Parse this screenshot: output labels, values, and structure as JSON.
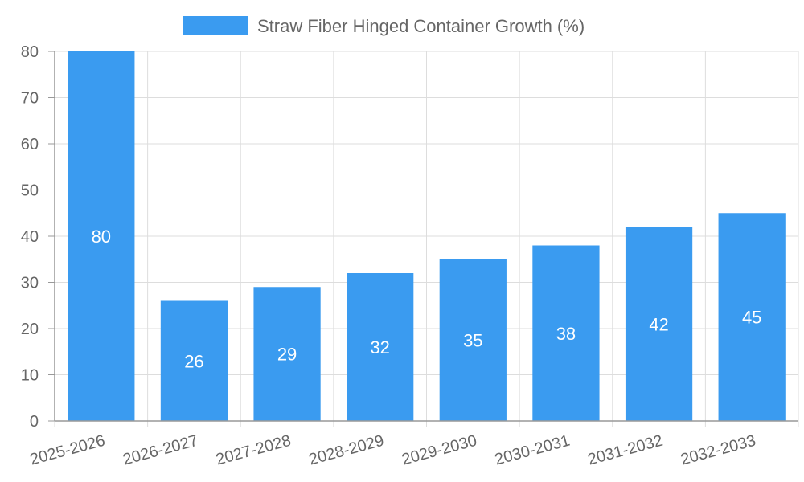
{
  "chart_data": {
    "type": "bar",
    "categories": [
      "2025-2026",
      "2026-2027",
      "2027-2028",
      "2028-2029",
      "2029-2030",
      "2030-2031",
      "2031-2032",
      "2032-2033"
    ],
    "series": [
      {
        "name": "Straw Fiber Hinged Container Growth (%)",
        "values": [
          80,
          26,
          29,
          32,
          35,
          38,
          42,
          45
        ]
      }
    ],
    "data_labels": [
      "80",
      "26",
      "29",
      "32",
      "35",
      "38",
      "42",
      "45"
    ],
    "y_ticks": [
      "0",
      "10",
      "20",
      "30",
      "40",
      "50",
      "60",
      "70",
      "80"
    ],
    "title": "",
    "xlabel": "",
    "ylabel": "",
    "ylim": [
      0,
      80
    ],
    "grid": true,
    "legend_position": "top",
    "colors": {
      "bar": "#3a9bf0",
      "grid": "#dddddd",
      "axis": "#999999",
      "text": "#666666",
      "data_label": "#ffffff"
    }
  }
}
